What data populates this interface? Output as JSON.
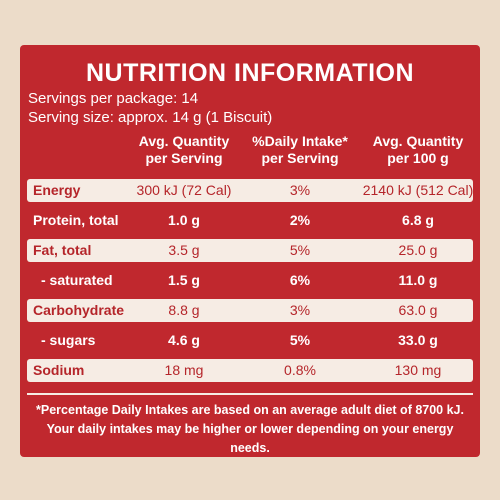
{
  "label": {
    "title": "NUTRITION INFORMATION",
    "servings_per_package": "Servings per package: 14",
    "serving_size": "Serving size: approx. 14 g (1 Biscuit)",
    "columns": [
      {
        "line1": "Avg. Quantity",
        "line2": "per Serving"
      },
      {
        "line1": "%Daily Intake*",
        "line2": "per Serving"
      },
      {
        "line1": "Avg. Quantity",
        "line2": "per 100 g"
      }
    ],
    "rows": [
      {
        "name": "Energy",
        "per_serving": "300 kJ (72 Cal)",
        "daily_intake": "3%",
        "per_100g": "2140 kJ (512 Cal)"
      },
      {
        "name": "Protein, total",
        "per_serving": "1.0 g",
        "daily_intake": "2%",
        "per_100g": "6.8 g"
      },
      {
        "name": "Fat, total",
        "per_serving": "3.5 g",
        "daily_intake": "5%",
        "per_100g": "25.0 g"
      },
      {
        "name": "- saturated",
        "per_serving": "1.5 g",
        "daily_intake": "6%",
        "per_100g": "11.0 g"
      },
      {
        "name": "Carbohydrate",
        "per_serving": "8.8 g",
        "daily_intake": "3%",
        "per_100g": "63.0 g"
      },
      {
        "name": "- sugars",
        "per_serving": "4.6 g",
        "daily_intake": "5%",
        "per_100g": "33.0 g"
      },
      {
        "name": "Sodium",
        "per_serving": "18 mg",
        "daily_intake": "0.8%",
        "per_100g": "130 mg"
      }
    ],
    "footnote_line1": "*Percentage Daily Intakes are based on an average adult diet of 8700 kJ.",
    "footnote_line2": "Your daily intakes may be higher or lower depending on your energy needs."
  },
  "colors": {
    "panel": "#c0282e",
    "light_row": "#f6ece4",
    "background": "#ecdcc9"
  }
}
